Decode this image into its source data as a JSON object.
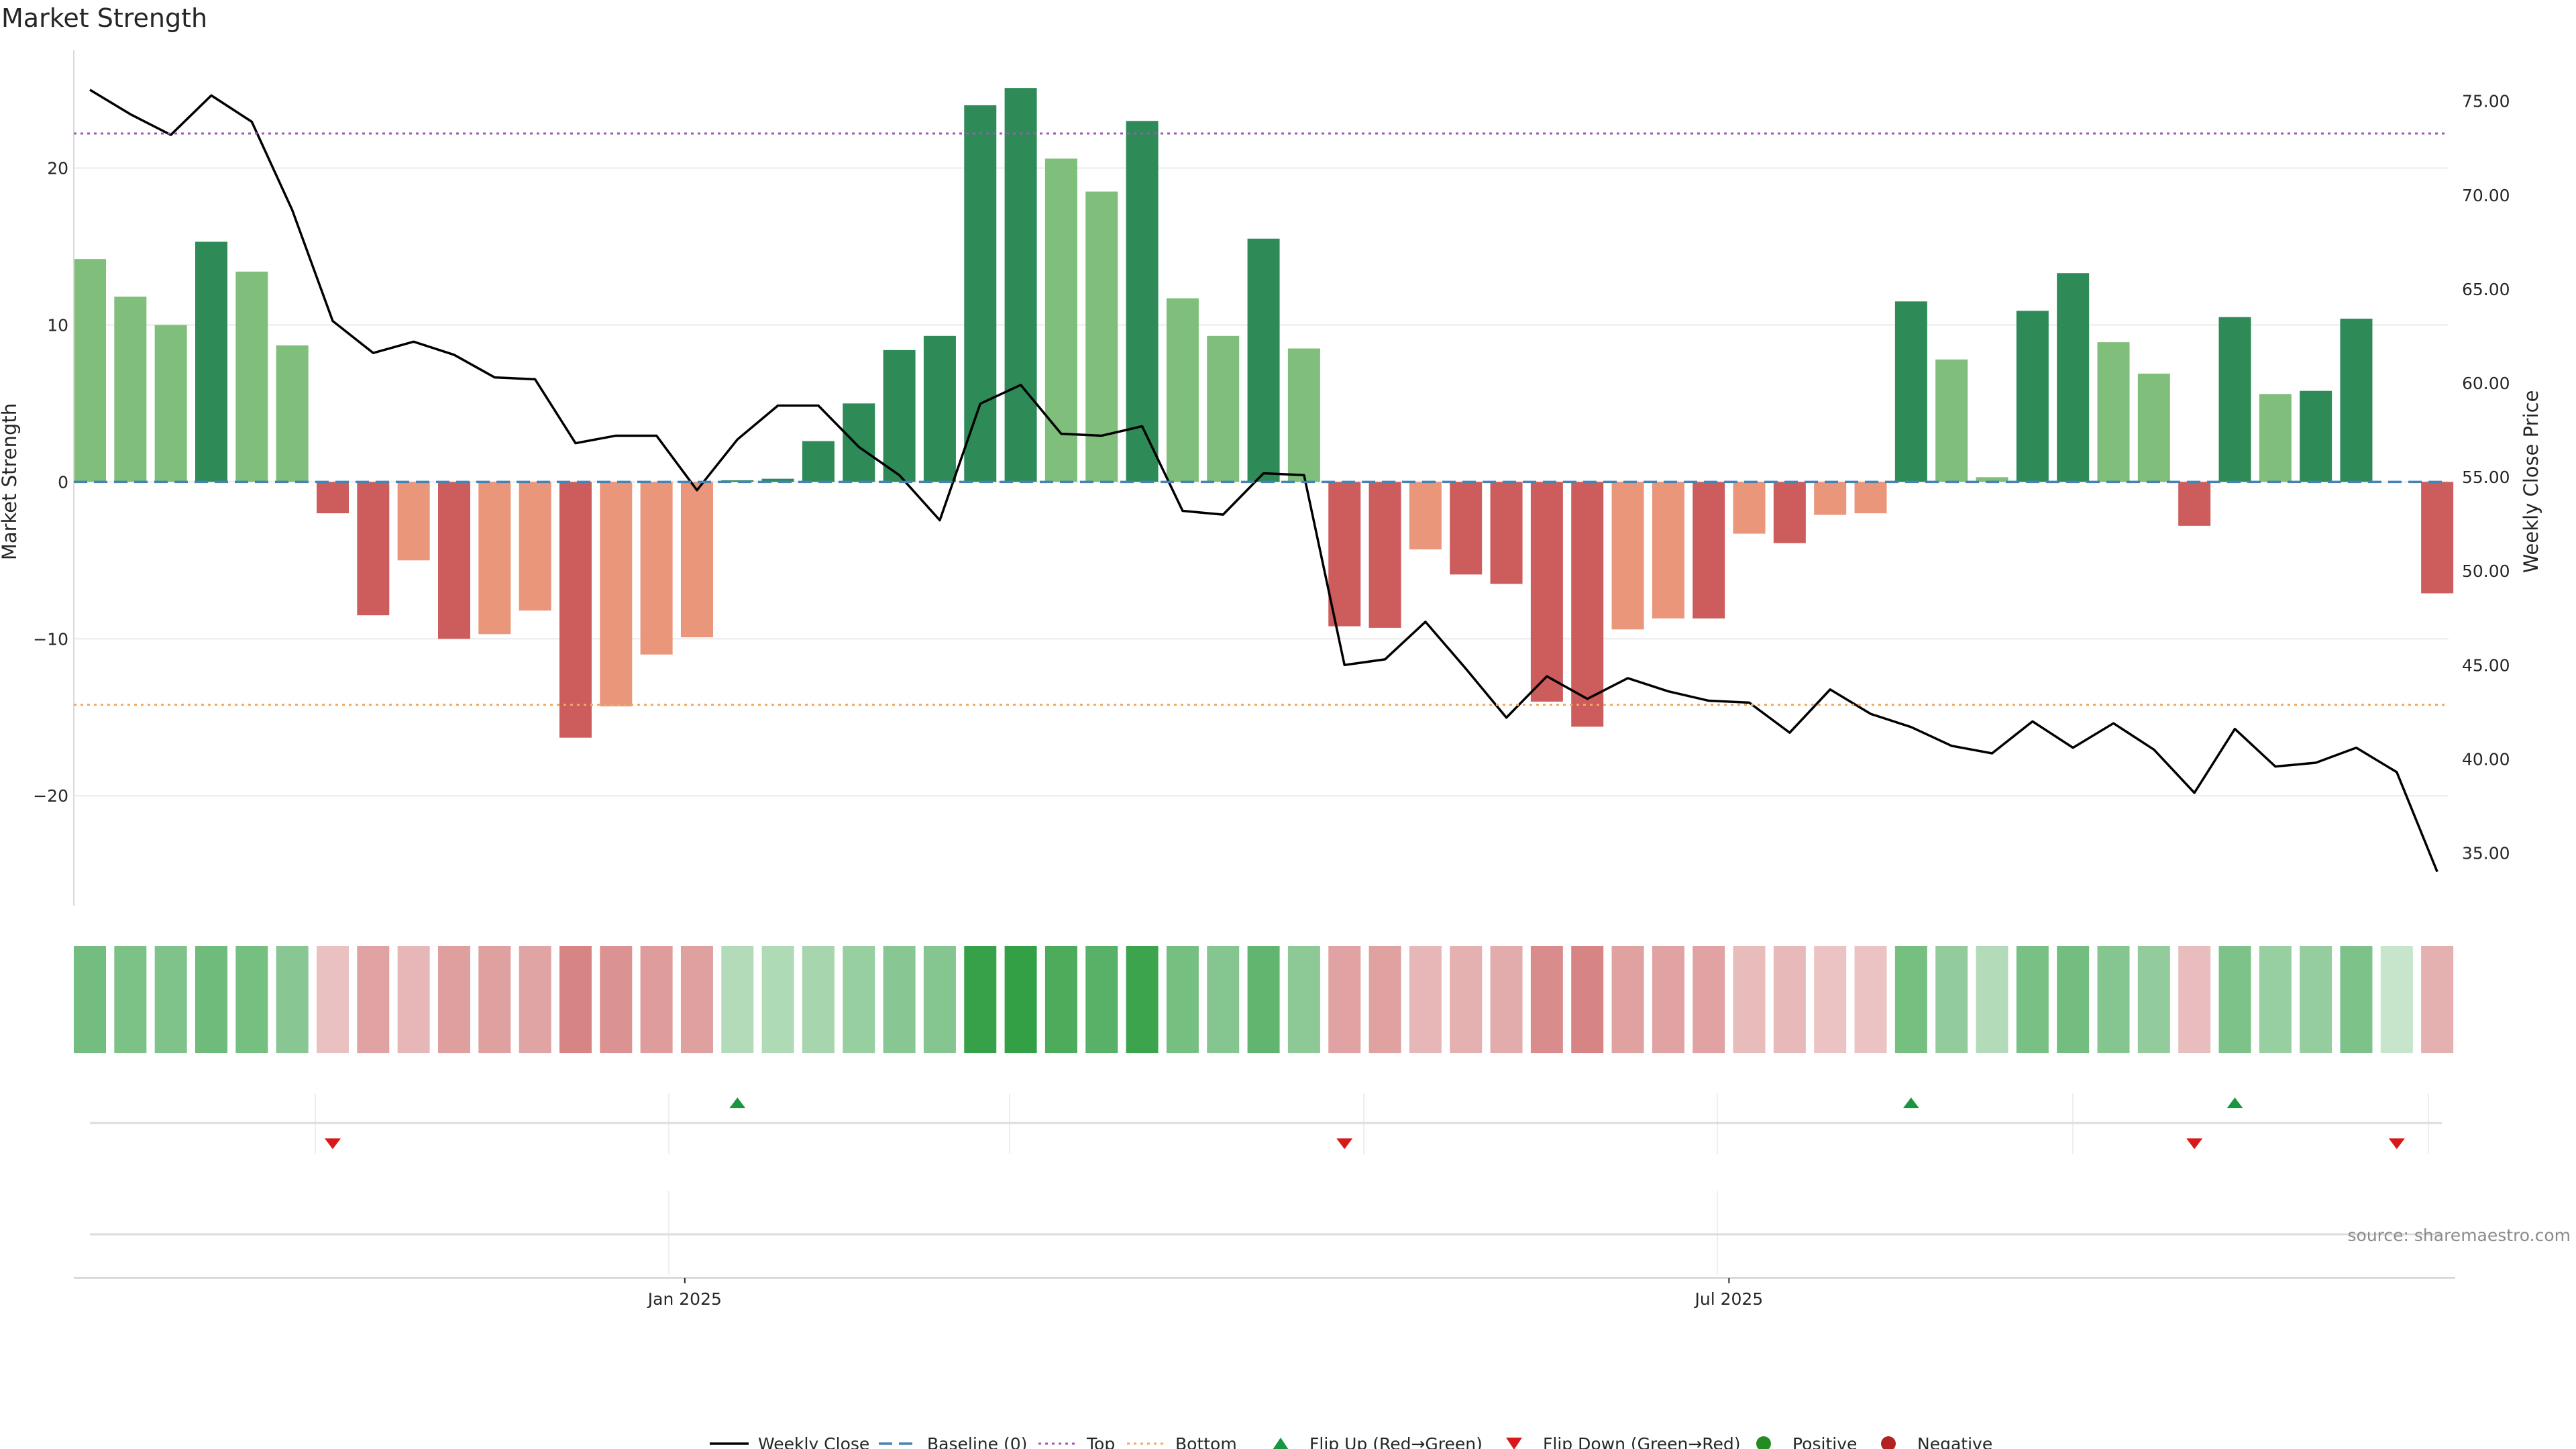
{
  "chart_data": {
    "type": "bar",
    "title": "Market Strength",
    "ylabel": "Market Strength",
    "y2label": "Weekly Close Price",
    "ylim": [
      -27,
      27.5
    ],
    "y2lim": [
      32.2,
      77.7
    ],
    "yticks": [
      "20",
      "10",
      "0",
      "−10",
      "−20"
    ],
    "y2ticks": [
      "75.00",
      "70.00",
      "65.00",
      "60.00",
      "55.00",
      "50.00",
      "45.00",
      "40.00",
      "35.00"
    ],
    "xticks": [
      {
        "label": "Jan 2025",
        "week_index": 14.7
      },
      {
        "label": "Jul 2025",
        "week_index": 40.5
      }
    ],
    "grid": true,
    "bars": [
      14.2,
      11.8,
      10.0,
      15.3,
      13.4,
      8.7,
      -2.0,
      -8.5,
      -5.0,
      -10.0,
      -9.7,
      -8.2,
      -16.3,
      -14.3,
      -11.0,
      -9.9,
      0.1,
      0.2,
      2.6,
      5.0,
      8.4,
      9.3,
      24.0,
      25.1,
      20.6,
      18.5,
      23.0,
      11.7,
      9.3,
      15.5,
      8.5,
      -9.2,
      -9.3,
      -4.3,
      -5.9,
      -6.5,
      -14.0,
      -15.6,
      -9.4,
      -8.7,
      -8.7,
      -3.3,
      -3.9,
      -2.1,
      -2.0,
      11.5,
      7.8,
      0.3,
      10.9,
      13.3,
      8.9,
      6.9,
      -2.8,
      10.5,
      5.6,
      5.8,
      10.4,
      0.0,
      -7.1
    ],
    "weekly_close": [
      75.6,
      74.3,
      73.2,
      75.3,
      73.9,
      69.2,
      63.3,
      61.6,
      62.2,
      61.5,
      60.3,
      60.2,
      56.8,
      57.2,
      57.2,
      54.3,
      57.0,
      58.8,
      58.8,
      56.6,
      55.1,
      52.7,
      58.9,
      59.9,
      57.3,
      57.2,
      57.7,
      53.2,
      53.0,
      55.2,
      55.1,
      45.0,
      45.3,
      47.3,
      44.8,
      42.2,
      44.4,
      43.2,
      44.3,
      43.6,
      43.1,
      43.0,
      41.4,
      43.7,
      42.4,
      41.7,
      40.7,
      40.3,
      42.0,
      40.6,
      41.9,
      40.5,
      38.2,
      41.6,
      39.6,
      39.8,
      40.6,
      39.3,
      34.0
    ],
    "baseline": 0,
    "top_level": 22.2,
    "bottom_level": -14.2,
    "strip_intensity": [
      0.62,
      0.56,
      0.54,
      0.64,
      0.6,
      0.48,
      0.22,
      0.45,
      0.3,
      0.48,
      0.47,
      0.44,
      0.68,
      0.58,
      0.5,
      0.47,
      0.22,
      0.24,
      0.3,
      0.38,
      0.48,
      0.5,
      0.98,
      1.0,
      0.85,
      0.78,
      0.95,
      0.6,
      0.5,
      0.72,
      0.46,
      0.45,
      0.46,
      0.3,
      0.35,
      0.38,
      0.62,
      0.68,
      0.46,
      0.45,
      0.45,
      0.26,
      0.28,
      0.2,
      0.2,
      0.6,
      0.42,
      0.22,
      0.58,
      0.62,
      0.5,
      0.42,
      0.25,
      0.55,
      0.38,
      0.4,
      0.55,
      0.1,
      0.35
    ],
    "flip_up_weeks": [
      16,
      45,
      53
    ],
    "flip_down_weeks": [
      6,
      31,
      52,
      57
    ],
    "colors": {
      "strong_pos": "#2e8b57",
      "weak_pos": "#7fbf7b",
      "strong_neg": "#cd5c5c",
      "weak_neg": "#e9967a",
      "weekly_close": "#000000",
      "baseline": "#4682b4",
      "top": "#9b59b6",
      "bottom": "#f0a862",
      "flip_up": "#1a9641",
      "flip_down": "#d7191c",
      "positive": "#228b22",
      "negative": "#b22222",
      "strip_pos": "#34a046",
      "strip_neg": "#c85a5a"
    },
    "legend": [
      {
        "label": "Weekly Close",
        "kind": "line"
      },
      {
        "label": "Baseline (0)",
        "kind": "dash"
      },
      {
        "label": "Top",
        "kind": "dot-top"
      },
      {
        "label": "Bottom",
        "kind": "dot-bottom"
      },
      {
        "label": "Flip Up (Red→Green)",
        "kind": "tri-up"
      },
      {
        "label": "Flip Down (Green→Red)",
        "kind": "tri-down"
      },
      {
        "label": "Positive",
        "kind": "dot-pos"
      },
      {
        "label": "Negative",
        "kind": "dot-neg"
      }
    ],
    "legend_placement": "bottom-center",
    "source": "source: sharemaestro.com"
  }
}
